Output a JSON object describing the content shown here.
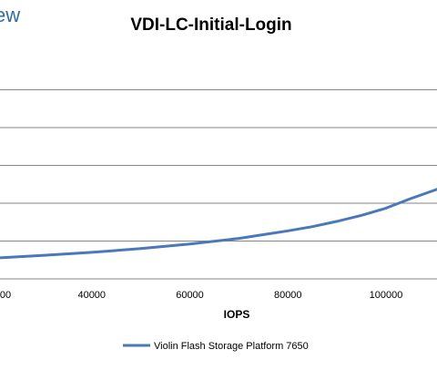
{
  "brand_fragment": "ew",
  "chart_data": {
    "type": "line",
    "title": "VDI-LC-Initial-Login",
    "xlabel": "IOPS",
    "ylabel": "",
    "x_ticks": [
      "40000",
      "60000",
      "80000",
      "100000"
    ],
    "x_tick_values": [
      40000,
      60000,
      80000,
      100000
    ],
    "x_partial_tick": "00",
    "xlim": [
      20000,
      115000
    ],
    "ylim": [
      0,
      6
    ],
    "grid": true,
    "legend": "bottom",
    "series": [
      {
        "name": "Violin Flash Storage Platform 7650",
        "color": "#4a78b8",
        "x": [
          20000,
          30000,
          40000,
          50000,
          60000,
          70000,
          80000,
          85000,
          90000,
          95000,
          100000,
          105000,
          110000,
          113000,
          115000
        ],
        "y": [
          0.55,
          0.62,
          0.7,
          0.8,
          0.92,
          1.07,
          1.27,
          1.38,
          1.52,
          1.68,
          1.87,
          2.12,
          2.35,
          2.5,
          2.65
        ]
      }
    ]
  }
}
